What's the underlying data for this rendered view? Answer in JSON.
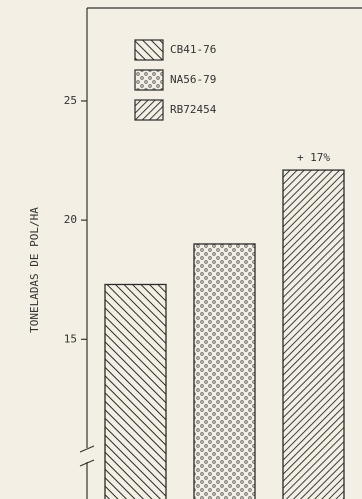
{
  "chart_data": {
    "type": "bar",
    "y_label": "TONELADAS DE POL/HA",
    "series": [
      {
        "name": "CB41-76",
        "color": "#2a2a2a",
        "pattern": "hatch-left",
        "values": [
          17.3
        ]
      },
      {
        "name": "NA56-79",
        "color": "#2a2a2a",
        "pattern": "dots",
        "values": [
          19.0
        ]
      },
      {
        "name": "RB72454",
        "color": "#2a2a2a",
        "pattern": "hatch-right",
        "values": [
          22.1
        ]
      }
    ],
    "annotation": "+ 17%",
    "ylim": [
      8.3,
      28.9
    ],
    "yticks": [
      15,
      20,
      25
    ],
    "axis_break": true
  }
}
